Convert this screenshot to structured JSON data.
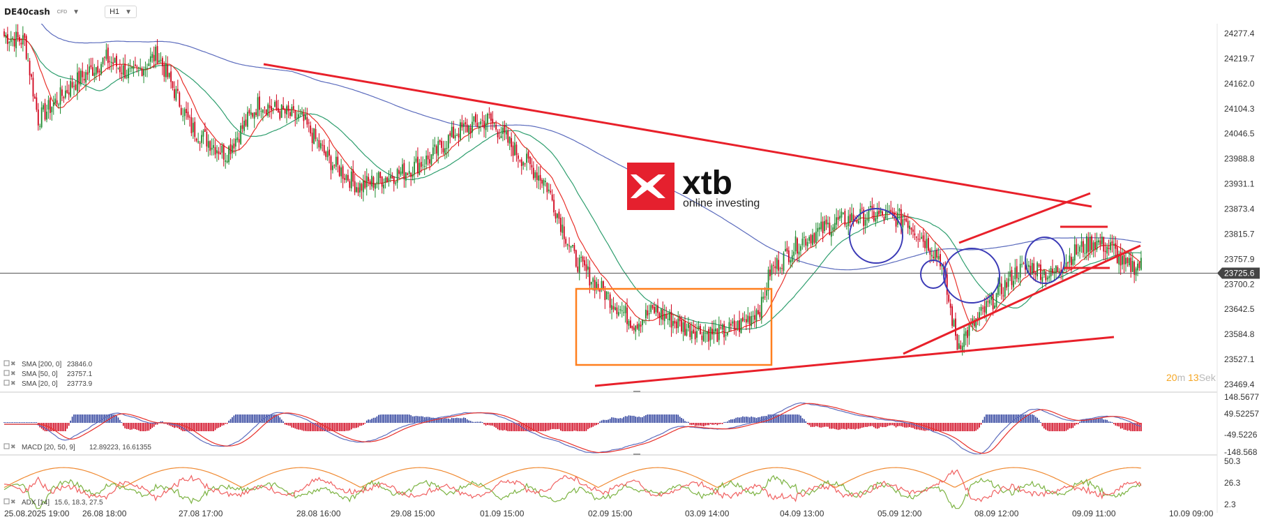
{
  "header": {
    "symbol": "DE40cash",
    "symbol_type": "CFD",
    "timeframe": "H1"
  },
  "timer": {
    "minutes": "20",
    "m_unit": "m",
    "seconds": "13",
    "s_unit": "Sek"
  },
  "logo": {
    "name": "xtb",
    "tagline": "online investing"
  },
  "colors": {
    "bull": "#1e8a2e",
    "bear": "#d0021b",
    "sma200": "#5b6bbd",
    "sma50": "#2e9e6e",
    "sma20": "#e8302a",
    "annotation": "#e8202a",
    "range_box": "#ff7f1e",
    "circles": "#3b3ab6",
    "macd_line": "#5b6bbd",
    "macd_signal": "#e8302a",
    "adx": "#f08a32",
    "di_plus": "#7cb342",
    "di_minus": "#f06060"
  },
  "chart_data": [
    {
      "type": "candlestick",
      "title": "DE40cash",
      "timeframe": "H1",
      "current_price": 23725.6,
      "ylim": [
        23469.4,
        24300.0
      ],
      "y_ticks": [
        24277.4,
        24219.7,
        24162.0,
        24104.3,
        24046.5,
        23988.8,
        23931.1,
        23873.4,
        23815.7,
        23757.9,
        23700.2,
        23642.5,
        23584.8,
        23527.1,
        23469.4
      ],
      "x_tick_labels": [
        "25.08.2025  19:00",
        "26.08  18:00",
        "27.08  17:00",
        "28.08  16:00",
        "29.08  15:00",
        "01.09  15:00",
        "02.09  15:00",
        "03.09  14:00",
        "04.09  13:00",
        "05.09  12:00",
        "08.09  12:00",
        "09.09  11:00",
        "10.09  09:00"
      ],
      "path_knots": [
        [
          0,
          24272
        ],
        [
          12,
          24260
        ],
        [
          20,
          24080
        ],
        [
          40,
          24160
        ],
        [
          60,
          24220
        ],
        [
          75,
          24180
        ],
        [
          90,
          24230
        ],
        [
          110,
          24060
        ],
        [
          130,
          24000
        ],
        [
          150,
          24120
        ],
        [
          160,
          24100
        ],
        [
          175,
          24080
        ],
        [
          190,
          23990
        ],
        [
          208,
          23925
        ],
        [
          235,
          23960
        ],
        [
          250,
          23990
        ],
        [
          265,
          24050
        ],
        [
          285,
          24080
        ],
        [
          302,
          24000
        ],
        [
          318,
          23935
        ],
        [
          335,
          23760
        ],
        [
          348,
          23700
        ],
        [
          370,
          23610
        ],
        [
          382,
          23640
        ],
        [
          400,
          23600
        ],
        [
          420,
          23585
        ],
        [
          432,
          23605
        ],
        [
          445,
          23650
        ],
        [
          450,
          23730
        ],
        [
          468,
          23800
        ],
        [
          490,
          23845
        ],
        [
          510,
          23860
        ],
        [
          530,
          23850
        ],
        [
          550,
          23760
        ],
        [
          560,
          23560
        ],
        [
          578,
          23650
        ],
        [
          595,
          23730
        ],
        [
          605,
          23740
        ],
        [
          615,
          23720
        ],
        [
          628,
          23770
        ],
        [
          640,
          23800
        ],
        [
          652,
          23780
        ],
        [
          658,
          23740
        ],
        [
          668,
          23745
        ]
      ],
      "series": [
        {
          "name": "SMA [200, 0]",
          "value": "23846.0"
        },
        {
          "name": "SMA [50, 0]",
          "value": "23757.1"
        },
        {
          "name": "SMA [20, 0]",
          "value": "23773.9"
        }
      ]
    },
    {
      "type": "bar",
      "indicator": "MACD [20, 50, 9]",
      "values_text": "12.89223,  16.61355",
      "ylim": [
        -148.568,
        148.5677
      ],
      "y_ticks": [
        "148.5677",
        "49.52257",
        "-49.5226",
        "-148.568"
      ]
    },
    {
      "type": "line",
      "indicator": "ADX [14]",
      "values_text": "15.6,  18.3,  27.5",
      "ylim": [
        2.3,
        50.3
      ],
      "y_ticks": [
        "50.3",
        "26.3",
        "2.3"
      ]
    }
  ]
}
